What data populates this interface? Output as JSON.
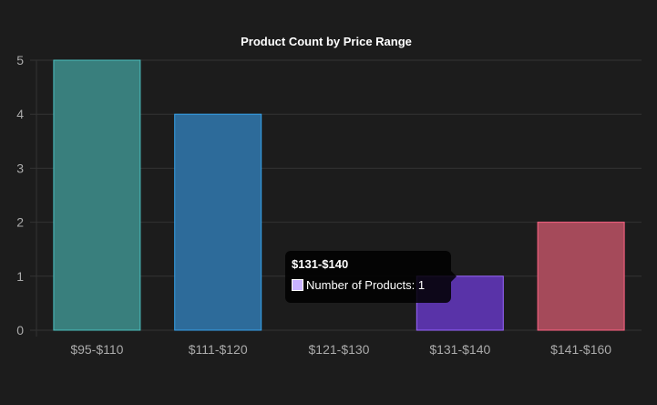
{
  "chart_data": {
    "type": "bar",
    "title": "Product Count by Price Range",
    "categories": [
      "$95-$110",
      "$111-$120",
      "$121-$130",
      "$131-$140",
      "$141-$160"
    ],
    "series": [
      {
        "name": "Number of Products",
        "values": [
          5,
          4,
          0,
          1,
          2
        ]
      }
    ],
    "ylim": [
      0,
      5
    ],
    "yticks": [
      0,
      1,
      2,
      3,
      4,
      5
    ],
    "grid": true,
    "legend": "none",
    "colors": {
      "fills": [
        "#397f7d",
        "#2d6b9a",
        "#3a2e5e",
        "#5933a8",
        "#a54a5a"
      ],
      "borders": [
        "#4bc0c0",
        "#36a2eb",
        "#9966ff",
        "#9966ff",
        "#ff6384"
      ],
      "background": "#1c1c1c",
      "grid": "#333333"
    }
  },
  "tooltip": {
    "title": "$131-$140",
    "label": "Number of Products: 1",
    "swatch_color": "#c9b3ff"
  }
}
